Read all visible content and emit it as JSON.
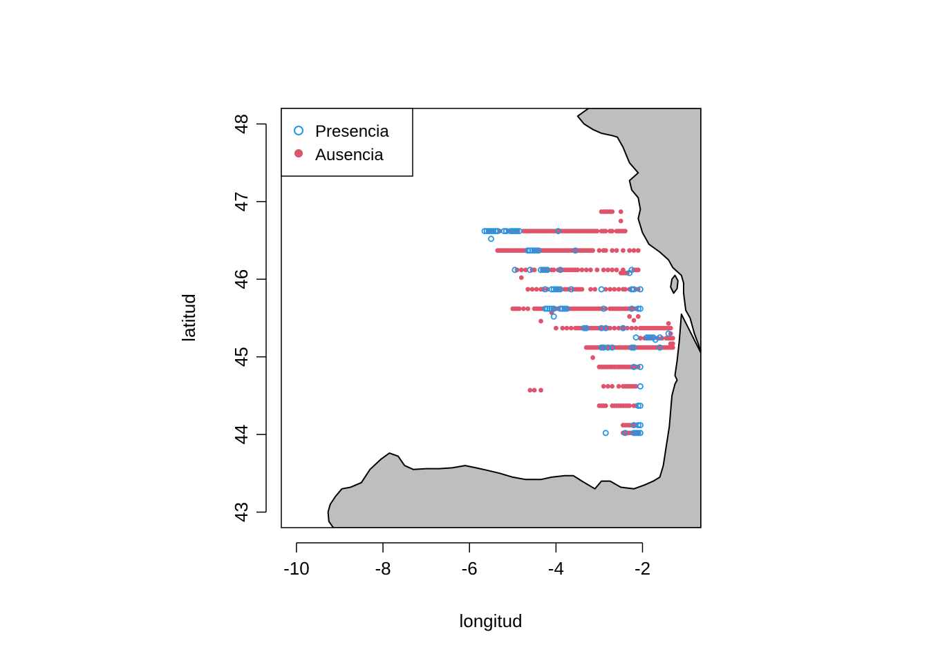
{
  "chart_data": {
    "type": "scatter",
    "xlabel": "longitud",
    "ylabel": "latitud",
    "xlim": [
      -10.35,
      -0.65
    ],
    "ylim": [
      42.8,
      48.2
    ],
    "x_ticks": [
      -10,
      -8,
      -6,
      -4,
      -2
    ],
    "y_ticks": [
      43,
      44,
      45,
      46,
      47,
      48
    ],
    "colors": {
      "presencia": "#2297E6",
      "ausencia": "#DF536B",
      "land": "#BEBEBE",
      "coast": "#000000"
    },
    "legend": {
      "position": "top-left",
      "entries": [
        {
          "label": "Presencia",
          "marker": "open-circle",
          "color": "#2297E6"
        },
        {
          "label": "Ausencia",
          "marker": "filled-circle",
          "color": "#DF536B"
        }
      ]
    },
    "land_polygons": [
      [
        [
          -9.15,
          42.8
        ],
        [
          -9.25,
          42.88
        ],
        [
          -9.27,
          43.0
        ],
        [
          -9.22,
          43.1
        ],
        [
          -9.1,
          43.2
        ],
        [
          -8.95,
          43.3
        ],
        [
          -8.75,
          43.32
        ],
        [
          -8.5,
          43.38
        ],
        [
          -8.3,
          43.55
        ],
        [
          -8.05,
          43.68
        ],
        [
          -7.85,
          43.76
        ],
        [
          -7.65,
          43.72
        ],
        [
          -7.5,
          43.6
        ],
        [
          -7.3,
          43.55
        ],
        [
          -7.0,
          43.56
        ],
        [
          -6.7,
          43.56
        ],
        [
          -6.4,
          43.57
        ],
        [
          -6.1,
          43.6
        ],
        [
          -5.85,
          43.57
        ],
        [
          -5.6,
          43.54
        ],
        [
          -5.3,
          43.5
        ],
        [
          -5.0,
          43.45
        ],
        [
          -4.7,
          43.42
        ],
        [
          -4.35,
          43.42
        ],
        [
          -4.1,
          43.45
        ],
        [
          -3.8,
          43.47
        ],
        [
          -3.6,
          43.47
        ],
        [
          -3.4,
          43.4
        ],
        [
          -3.1,
          43.3
        ],
        [
          -2.95,
          43.4
        ],
        [
          -2.75,
          43.4
        ],
        [
          -2.5,
          43.32
        ],
        [
          -2.2,
          43.3
        ],
        [
          -1.95,
          43.35
        ],
        [
          -1.75,
          43.4
        ],
        [
          -1.6,
          43.45
        ],
        [
          -1.52,
          43.6
        ],
        [
          -1.45,
          43.85
        ],
        [
          -1.38,
          44.1
        ],
        [
          -1.32,
          44.5
        ],
        [
          -1.25,
          44.65
        ],
        [
          -1.2,
          44.7
        ],
        [
          -1.25,
          44.76
        ],
        [
          -1.2,
          44.95
        ],
        [
          -1.15,
          45.2
        ],
        [
          -1.1,
          45.55
        ],
        [
          -0.65,
          45.05
        ],
        [
          -0.65,
          42.8
        ]
      ],
      [
        [
          -3.25,
          48.2
        ],
        [
          -3.5,
          48.1
        ],
        [
          -3.35,
          48.0
        ],
        [
          -3.15,
          47.93
        ],
        [
          -2.95,
          47.88
        ],
        [
          -2.7,
          47.85
        ],
        [
          -2.58,
          47.83
        ],
        [
          -2.45,
          47.7
        ],
        [
          -2.3,
          47.5
        ],
        [
          -2.1,
          47.37
        ],
        [
          -2.3,
          47.27
        ],
        [
          -2.25,
          47.15
        ],
        [
          -2.1,
          47.05
        ],
        [
          -2.05,
          46.9
        ],
        [
          -2.1,
          46.78
        ],
        [
          -2.0,
          46.6
        ],
        [
          -1.85,
          46.45
        ],
        [
          -1.6,
          46.35
        ],
        [
          -1.4,
          46.25
        ],
        [
          -1.3,
          46.15
        ],
        [
          -1.1,
          46.05
        ],
        [
          -1.05,
          45.95
        ],
        [
          -1.05,
          45.82
        ],
        [
          -1.0,
          45.6
        ],
        [
          -0.9,
          45.5
        ],
        [
          -0.8,
          45.3
        ],
        [
          -0.7,
          45.15
        ],
        [
          -0.65,
          45.05
        ],
        [
          -0.65,
          48.2
        ]
      ],
      [
        [
          -1.32,
          46.0
        ],
        [
          -1.25,
          46.05
        ],
        [
          -1.18,
          45.98
        ],
        [
          -1.2,
          45.88
        ],
        [
          -1.28,
          45.82
        ],
        [
          -1.35,
          45.9
        ]
      ]
    ],
    "absence_points": [
      {
        "lat": 46.62,
        "x": [
          -5.55,
          -5.45,
          -5.3,
          -5.1,
          -5.0,
          -4.9,
          -4.75,
          -4.7,
          -4.65,
          -4.6,
          -4.55,
          -4.5,
          -4.45,
          -4.4,
          -4.35,
          -4.3,
          -4.25,
          -4.2,
          -4.15,
          -4.1,
          -4.05,
          -4.0,
          -3.95,
          -3.9,
          -3.85,
          -3.8,
          -3.75,
          -3.7,
          -3.65,
          -3.6,
          -3.55,
          -3.5,
          -3.45,
          -3.4,
          -3.35,
          -3.3,
          -3.25,
          -3.2,
          -3.15,
          -3.1,
          -3.05,
          -2.95,
          -2.9,
          -2.85,
          -2.75,
          -2.7,
          -2.6,
          -2.55,
          -2.5,
          -2.45,
          -2.4
        ]
      },
      {
        "lat": 46.87,
        "x": [
          -2.95,
          -2.9,
          -2.85,
          -2.8,
          -2.75,
          -2.7,
          -2.5
        ]
      },
      {
        "lat": 46.75,
        "x": [
          -2.5
        ]
      },
      {
        "lat": 46.37,
        "x": [
          -5.35,
          -5.3,
          -5.25,
          -5.2,
          -5.15,
          -5.1,
          -5.05,
          -5.0,
          -4.95,
          -4.9,
          -4.85,
          -4.8,
          -4.75,
          -4.7,
          -4.5,
          -4.45,
          -4.4,
          -4.35,
          -4.3,
          -4.25,
          -4.2,
          -4.15,
          -4.1,
          -4.05,
          -4.0,
          -3.95,
          -3.9,
          -3.85,
          -3.8,
          -3.75,
          -3.7,
          -3.65,
          -3.6,
          -3.55,
          -3.5,
          -3.45,
          -3.4,
          -3.35,
          -3.3,
          -3.25,
          -3.2,
          -3.15,
          -3.0,
          -2.9,
          -2.85,
          -2.7,
          -2.6,
          -2.45,
          -2.3,
          -2.2,
          -2.1
        ]
      },
      {
        "lat": 46.12,
        "x": [
          -4.9,
          -4.8,
          -4.7,
          -4.55,
          -4.5,
          -4.3,
          -4.2,
          -4.1,
          -4.05,
          -3.95,
          -3.9,
          -3.85,
          -3.8,
          -3.75,
          -3.7,
          -3.65,
          -3.6,
          -3.55,
          -3.5,
          -3.4,
          -3.3,
          -3.2,
          -3.05,
          -2.9,
          -2.8,
          -2.7,
          -2.6,
          -2.45,
          -2.2,
          -2.15,
          -2.1
        ]
      },
      {
        "lat": 46.02,
        "x": [
          -4.8
        ]
      },
      {
        "lat": 46.08,
        "x": [
          -2.5,
          -2.45,
          -2.4,
          -2.35
        ]
      },
      {
        "lat": 45.87,
        "x": [
          -4.65,
          -4.55,
          -4.45,
          -4.35,
          -4.3,
          -4.2,
          -4.0,
          -3.95,
          -3.9,
          -3.8,
          -3.75,
          -3.7,
          -3.6,
          -3.55,
          -3.5,
          -3.45,
          -3.4,
          -3.2,
          -3.1,
          -2.85,
          -2.75,
          -2.65,
          -2.55,
          -2.45,
          -2.4,
          -2.3,
          -2.15,
          -2.1
        ]
      },
      {
        "lat": 45.62,
        "x": [
          -5.0,
          -4.95,
          -4.9,
          -4.85,
          -4.75,
          -4.65,
          -4.5,
          -4.45,
          -4.4,
          -4.35,
          -4.3,
          -4.05,
          -4.0,
          -3.95,
          -3.8,
          -3.75,
          -3.7,
          -3.65,
          -3.6,
          -3.55,
          -3.5,
          -3.45,
          -3.4,
          -3.35,
          -3.3,
          -3.25,
          -3.2,
          -3.15,
          -3.1,
          -3.05,
          -3.0,
          -2.95,
          -2.85,
          -2.75,
          -2.7,
          -2.65,
          -2.6,
          -2.55,
          -2.5,
          -2.45,
          -2.4,
          -2.35,
          -2.3,
          -2.25,
          -2.2,
          -2.15
        ]
      },
      {
        "lat": 45.57,
        "x": [
          -4.1
        ]
      },
      {
        "lat": 45.46,
        "x": [
          -4.35
        ]
      },
      {
        "lat": 45.52,
        "x": [
          -2.3,
          -2.1
        ]
      },
      {
        "lat": 45.47,
        "x": [
          -2.2
        ]
      },
      {
        "lat": 45.37,
        "x": [
          -4.0,
          -3.85,
          -3.75,
          -3.65,
          -3.55,
          -3.5,
          -3.45,
          -3.4,
          -3.3,
          -3.25,
          -3.2,
          -3.15,
          -3.1,
          -3.05,
          -3.0,
          -2.95,
          -2.9,
          -2.85,
          -2.8,
          -2.75,
          -2.65,
          -2.55,
          -2.45,
          -2.35,
          -2.25,
          -2.15,
          -2.05,
          -2.0,
          -1.95,
          -1.9,
          -1.85,
          -1.8,
          -1.75,
          -1.7,
          -1.65,
          -1.6,
          -1.55,
          -1.5,
          -1.45,
          -1.4,
          -1.35
        ]
      },
      {
        "lat": 45.43,
        "x": [
          -1.4
        ]
      },
      {
        "lat": 45.3,
        "x": [
          -1.35
        ]
      },
      {
        "lat": 45.24,
        "x": [
          -2.05,
          -1.95,
          -1.85,
          -1.75,
          -1.65,
          -1.55,
          -1.45,
          -1.4,
          -1.35,
          -1.3
        ]
      },
      {
        "lat": 45.17,
        "x": [
          -1.35,
          -1.3
        ]
      },
      {
        "lat": 45.12,
        "x": [
          -3.3,
          -3.25,
          -3.2,
          -3.15,
          -3.1,
          -3.05,
          -3.0,
          -2.95,
          -2.9,
          -2.85,
          -2.8,
          -2.75,
          -2.7,
          -2.65,
          -2.6,
          -2.55,
          -2.5,
          -2.45,
          -2.4,
          -2.35,
          -2.3,
          -2.25,
          -2.2,
          -2.15,
          -2.1,
          -2.05,
          -2.0,
          -1.95,
          -1.9,
          -1.85,
          -1.8,
          -1.75,
          -1.7,
          -1.65,
          -1.6,
          -1.55,
          -1.5,
          -1.45,
          -1.4,
          -1.35,
          -1.3
        ]
      },
      {
        "lat": 44.99,
        "x": [
          -3.15
        ]
      },
      {
        "lat": 44.87,
        "x": [
          -3.0,
          -2.95,
          -2.9,
          -2.85,
          -2.8,
          -2.75,
          -2.7,
          -2.65,
          -2.6,
          -2.55,
          -2.5,
          -2.45,
          -2.4,
          -2.35,
          -2.3,
          -2.25,
          -2.2,
          -2.15,
          -2.1
        ]
      },
      {
        "lat": 44.62,
        "x": [
          -2.9,
          -2.8,
          -2.7,
          -2.55,
          -2.45,
          -2.4,
          -2.35,
          -2.3,
          -2.25,
          -2.2,
          -2.15
        ]
      },
      {
        "lat": 44.57,
        "x": [
          -4.6,
          -4.5,
          -4.35
        ]
      },
      {
        "lat": 44.37,
        "x": [
          -3.0,
          -2.95,
          -2.9,
          -2.85,
          -2.7,
          -2.65,
          -2.6,
          -2.55,
          -2.5,
          -2.45,
          -2.4,
          -2.35,
          -2.3,
          -2.2,
          -2.15
        ]
      },
      {
        "lat": 44.12,
        "x": [
          -2.45,
          -2.4,
          -2.35,
          -2.3,
          -2.25,
          -2.2,
          -2.15
        ]
      },
      {
        "lat": 44.02,
        "x": [
          -2.45,
          -2.4,
          -2.35,
          -2.3,
          -2.25,
          -2.2,
          -2.15,
          -2.1
        ]
      }
    ],
    "presence_points": [
      {
        "lat": 46.62,
        "x": [
          -5.65,
          -5.6,
          -5.55,
          -5.5,
          -5.45,
          -5.4,
          -5.35,
          -5.2,
          -5.15,
          -5.05,
          -5.0,
          -4.95,
          -4.9,
          -4.85,
          -3.95
        ]
      },
      {
        "lat": 46.52,
        "x": [
          -5.5
        ]
      },
      {
        "lat": 46.37,
        "x": [
          -4.65,
          -4.6,
          -4.55,
          -4.5,
          -4.45,
          -4.4,
          -3.55
        ]
      },
      {
        "lat": 46.12,
        "x": [
          -4.95,
          -4.6,
          -4.35,
          -4.3,
          -4.25,
          -4.2,
          -3.9,
          -2.25
        ]
      },
      {
        "lat": 46.08,
        "x": [
          -2.3
        ]
      },
      {
        "lat": 45.87,
        "x": [
          -4.25,
          -4.1,
          -4.05,
          -4.0,
          -3.95,
          -3.9,
          -3.65,
          -2.95,
          -2.25,
          -2.2,
          -2.05
        ]
      },
      {
        "lat": 45.62,
        "x": [
          -4.25,
          -4.2,
          -4.15,
          -4.1,
          -4.05,
          -3.9,
          -3.85,
          -3.8,
          -3.75,
          -2.9,
          -2.25,
          -2.1,
          -2.05
        ]
      },
      {
        "lat": 45.52,
        "x": [
          -4.05
        ]
      },
      {
        "lat": 45.37,
        "x": [
          -3.35,
          -3.3,
          -2.95,
          -2.85,
          -2.45
        ]
      },
      {
        "lat": 45.3,
        "x": [
          -1.4
        ]
      },
      {
        "lat": 45.25,
        "x": [
          -2.15,
          -1.9,
          -1.85,
          -1.8,
          -1.75,
          -1.6
        ]
      },
      {
        "lat": 45.22,
        "x": [
          -1.7
        ]
      },
      {
        "lat": 45.12,
        "x": [
          -2.95,
          -2.9,
          -2.8,
          -2.7,
          -2.25,
          -2.2,
          -1.6
        ]
      },
      {
        "lat": 44.87,
        "x": [
          -2.2,
          -2.05
        ]
      },
      {
        "lat": 44.62,
        "x": [
          -2.05
        ]
      },
      {
        "lat": 44.37,
        "x": [
          -2.1,
          -2.05
        ]
      },
      {
        "lat": 44.12,
        "x": [
          -2.2,
          -2.1,
          -2.05
        ]
      },
      {
        "lat": 44.02,
        "x": [
          -2.85,
          -2.4,
          -2.2,
          -2.15,
          -2.1,
          -2.05
        ]
      }
    ]
  }
}
